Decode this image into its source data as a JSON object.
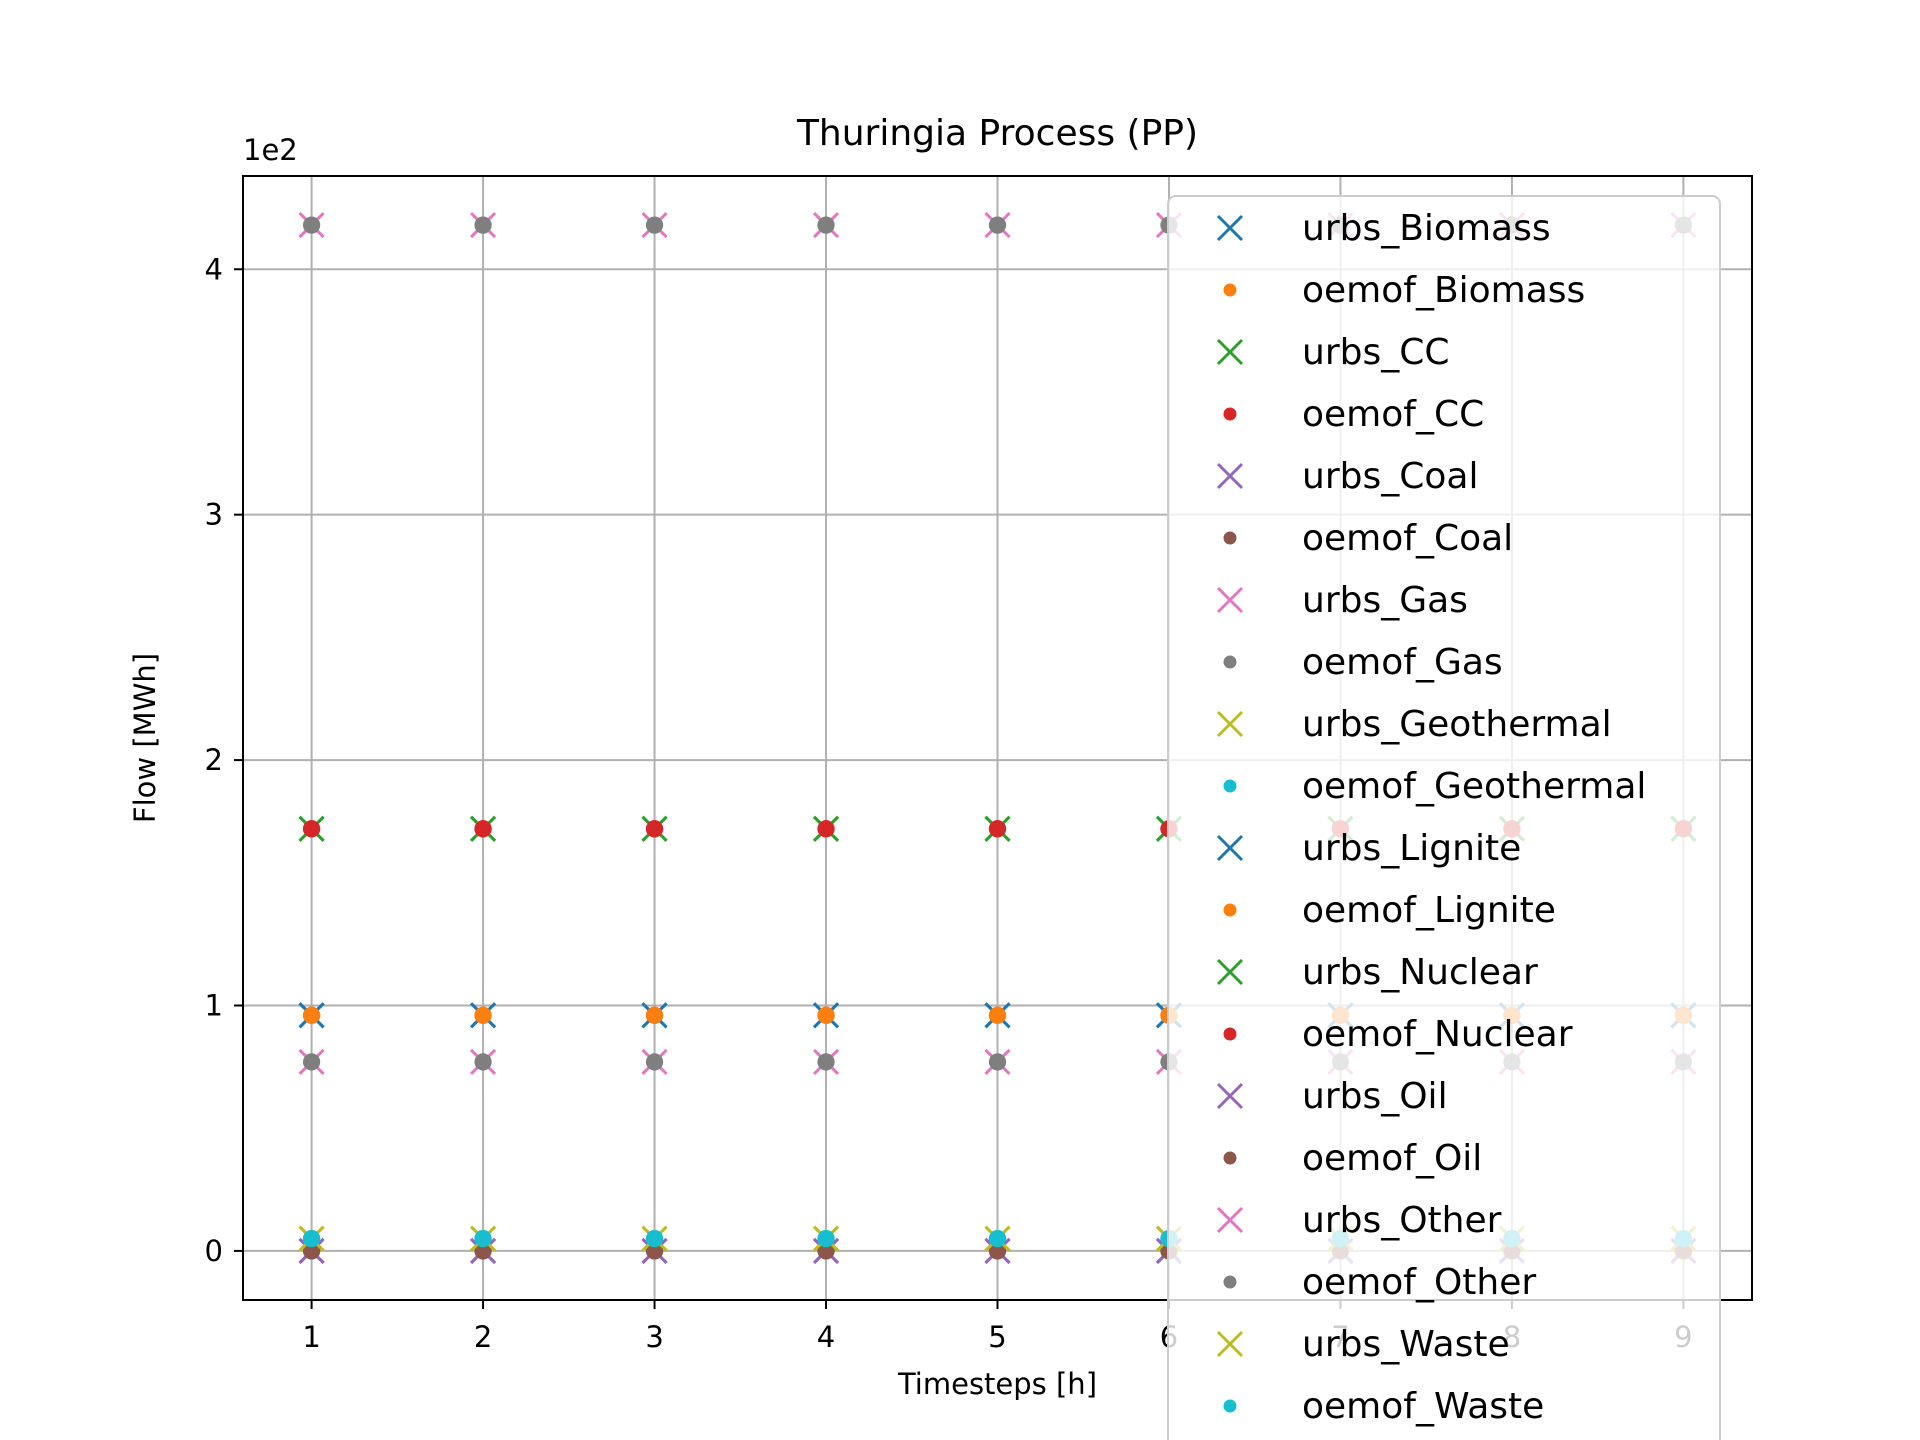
{
  "chart_data": {
    "type": "scatter",
    "title": "Thuringia Process (PP)",
    "xlabel": "Timesteps [h]",
    "ylabel": "Flow [MWh]",
    "y_offset_label": "1e2",
    "xlim": [
      0.6,
      9.4
    ],
    "ylim": [
      -20,
      438
    ],
    "x_ticks": [
      1,
      2,
      3,
      4,
      5,
      6,
      7,
      8,
      9
    ],
    "x_tick_labels": [
      "1",
      "2",
      "3",
      "4",
      "5",
      "6",
      "7",
      "8",
      "9"
    ],
    "y_ticks": [
      0,
      100,
      200,
      300,
      400
    ],
    "y_tick_labels": [
      "0",
      "1",
      "2",
      "3",
      "4"
    ],
    "grid": true,
    "legend_position": "upper-right",
    "x": [
      1,
      2,
      3,
      4,
      5,
      6,
      7,
      8,
      9
    ],
    "series": [
      {
        "name": "urbs_Biomass",
        "marker": "x",
        "color": "#1f77b4",
        "values": [
          96,
          96,
          96,
          96,
          96,
          96,
          96,
          96,
          96
        ]
      },
      {
        "name": "oemof_Biomass",
        "marker": "o",
        "color": "#ff7f0e",
        "values": [
          96,
          96,
          96,
          96,
          96,
          96,
          96,
          96,
          96
        ]
      },
      {
        "name": "urbs_CC",
        "marker": "x",
        "color": "#2ca02c",
        "values": [
          172,
          172,
          172,
          172,
          172,
          172,
          172,
          172,
          172
        ]
      },
      {
        "name": "oemof_CC",
        "marker": "o",
        "color": "#d62728",
        "values": [
          172,
          172,
          172,
          172,
          172,
          172,
          172,
          172,
          172
        ]
      },
      {
        "name": "urbs_Coal",
        "marker": "x",
        "color": "#9467bd",
        "values": [
          0,
          0,
          0,
          0,
          0,
          0,
          0,
          0,
          0
        ]
      },
      {
        "name": "oemof_Coal",
        "marker": "o",
        "color": "#8c564b",
        "values": [
          0,
          0,
          0,
          0,
          0,
          0,
          0,
          0,
          0
        ]
      },
      {
        "name": "urbs_Gas",
        "marker": "x",
        "color": "#e377c2",
        "values": [
          418,
          418,
          418,
          418,
          418,
          418,
          418,
          418,
          418
        ]
      },
      {
        "name": "oemof_Gas",
        "marker": "o",
        "color": "#7f7f7f",
        "values": [
          418,
          418,
          418,
          418,
          418,
          418,
          418,
          418,
          418
        ]
      },
      {
        "name": "urbs_Geothermal",
        "marker": "x",
        "color": "#bcbd22",
        "values": [
          5,
          5,
          5,
          5,
          5,
          5,
          5,
          5,
          5
        ]
      },
      {
        "name": "oemof_Geothermal",
        "marker": "o",
        "color": "#17becf",
        "values": [
          5,
          5,
          5,
          5,
          5,
          5,
          5,
          5,
          5
        ]
      },
      {
        "name": "urbs_Lignite",
        "marker": "x",
        "color": "#1f77b4",
        "values": [
          96,
          96,
          96,
          96,
          96,
          96,
          96,
          96,
          96
        ]
      },
      {
        "name": "oemof_Lignite",
        "marker": "o",
        "color": "#ff7f0e",
        "values": [
          96,
          96,
          96,
          96,
          96,
          96,
          96,
          96,
          96
        ]
      },
      {
        "name": "urbs_Nuclear",
        "marker": "x",
        "color": "#2ca02c",
        "values": [
          172,
          172,
          172,
          172,
          172,
          172,
          172,
          172,
          172
        ]
      },
      {
        "name": "oemof_Nuclear",
        "marker": "o",
        "color": "#d62728",
        "values": [
          172,
          172,
          172,
          172,
          172,
          172,
          172,
          172,
          172
        ]
      },
      {
        "name": "urbs_Oil",
        "marker": "x",
        "color": "#9467bd",
        "values": [
          0,
          0,
          0,
          0,
          0,
          0,
          0,
          0,
          0
        ]
      },
      {
        "name": "oemof_Oil",
        "marker": "o",
        "color": "#8c564b",
        "values": [
          0,
          0,
          0,
          0,
          0,
          0,
          0,
          0,
          0
        ]
      },
      {
        "name": "urbs_Other",
        "marker": "x",
        "color": "#e377c2",
        "values": [
          77,
          77,
          77,
          77,
          77,
          77,
          77,
          77,
          77
        ]
      },
      {
        "name": "oemof_Other",
        "marker": "o",
        "color": "#7f7f7f",
        "values": [
          77,
          77,
          77,
          77,
          77,
          77,
          77,
          77,
          77
        ]
      },
      {
        "name": "urbs_Waste",
        "marker": "x",
        "color": "#bcbd22",
        "values": [
          5,
          5,
          5,
          5,
          5,
          5,
          5,
          5,
          5
        ]
      },
      {
        "name": "oemof_Waste",
        "marker": "o",
        "color": "#17becf",
        "values": [
          5,
          5,
          5,
          5,
          5,
          5,
          5,
          5,
          5
        ]
      }
    ]
  }
}
